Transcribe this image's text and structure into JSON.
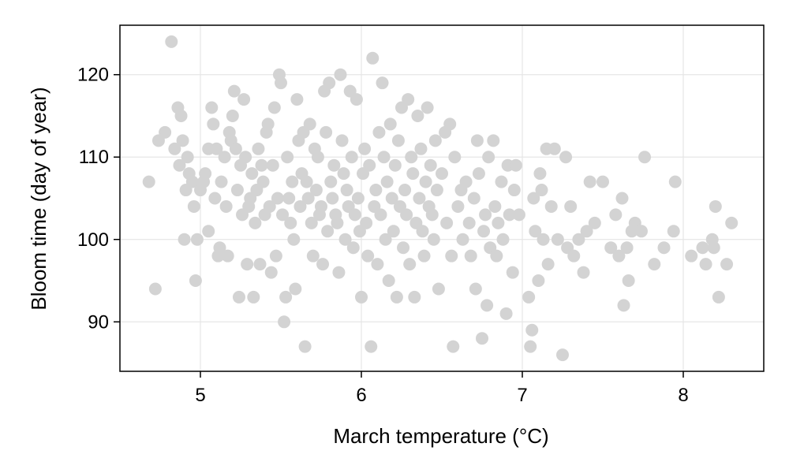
{
  "chart_data": {
    "type": "scatter",
    "title": "",
    "xlabel": "March temperature (°C)",
    "ylabel": "Bloom time (day of year)",
    "xlim": [
      4.5,
      8.5
    ],
    "ylim": [
      84,
      126
    ],
    "xticks": [
      5,
      6,
      7,
      8
    ],
    "yticks": [
      90,
      100,
      110,
      120
    ],
    "grid": true,
    "legend": "none",
    "marker_color": "#d3d3d3",
    "points": [
      [
        4.68,
        107
      ],
      [
        4.72,
        94
      ],
      [
        4.74,
        112
      ],
      [
        4.78,
        113
      ],
      [
        4.82,
        124
      ],
      [
        4.84,
        111
      ],
      [
        4.86,
        116
      ],
      [
        4.87,
        109
      ],
      [
        4.88,
        115
      ],
      [
        4.89,
        112
      ],
      [
        4.9,
        100
      ],
      [
        4.91,
        106
      ],
      [
        4.92,
        110
      ],
      [
        4.93,
        108
      ],
      [
        4.95,
        107
      ],
      [
        4.96,
        104
      ],
      [
        4.97,
        95
      ],
      [
        4.98,
        100
      ],
      [
        5.0,
        106
      ],
      [
        5.02,
        107
      ],
      [
        5.03,
        108
      ],
      [
        5.05,
        101
      ],
      [
        5.05,
        111
      ],
      [
        5.07,
        116
      ],
      [
        5.08,
        114
      ],
      [
        5.09,
        105
      ],
      [
        5.1,
        111
      ],
      [
        5.11,
        98
      ],
      [
        5.12,
        99
      ],
      [
        5.13,
        107
      ],
      [
        5.15,
        110
      ],
      [
        5.16,
        104
      ],
      [
        5.17,
        98
      ],
      [
        5.18,
        113
      ],
      [
        5.19,
        112
      ],
      [
        5.2,
        115
      ],
      [
        5.21,
        118
      ],
      [
        5.22,
        111
      ],
      [
        5.23,
        106
      ],
      [
        5.24,
        93
      ],
      [
        5.25,
        109
      ],
      [
        5.26,
        103
      ],
      [
        5.27,
        117
      ],
      [
        5.28,
        110
      ],
      [
        5.29,
        97
      ],
      [
        5.3,
        104
      ],
      [
        5.31,
        105
      ],
      [
        5.32,
        108
      ],
      [
        5.33,
        93
      ],
      [
        5.34,
        102
      ],
      [
        5.35,
        106
      ],
      [
        5.36,
        111
      ],
      [
        5.37,
        97
      ],
      [
        5.38,
        109
      ],
      [
        5.39,
        107
      ],
      [
        5.4,
        103
      ],
      [
        5.41,
        113
      ],
      [
        5.42,
        114
      ],
      [
        5.43,
        104
      ],
      [
        5.44,
        96
      ],
      [
        5.45,
        109
      ],
      [
        5.46,
        116
      ],
      [
        5.47,
        98
      ],
      [
        5.48,
        105
      ],
      [
        5.49,
        120
      ],
      [
        5.5,
        119
      ],
      [
        5.51,
        103
      ],
      [
        5.52,
        90
      ],
      [
        5.53,
        93
      ],
      [
        5.54,
        110
      ],
      [
        5.55,
        105
      ],
      [
        5.56,
        102
      ],
      [
        5.57,
        107
      ],
      [
        5.58,
        100
      ],
      [
        5.59,
        94
      ],
      [
        5.6,
        117
      ],
      [
        5.61,
        112
      ],
      [
        5.62,
        104
      ],
      [
        5.63,
        108
      ],
      [
        5.64,
        113
      ],
      [
        5.65,
        87
      ],
      [
        5.66,
        107
      ],
      [
        5.67,
        105
      ],
      [
        5.68,
        114
      ],
      [
        5.69,
        102
      ],
      [
        5.7,
        98
      ],
      [
        5.71,
        111
      ],
      [
        5.72,
        106
      ],
      [
        5.73,
        110
      ],
      [
        5.74,
        103
      ],
      [
        5.75,
        104
      ],
      [
        5.76,
        97
      ],
      [
        5.77,
        118
      ],
      [
        5.78,
        113
      ],
      [
        5.79,
        101
      ],
      [
        5.8,
        119
      ],
      [
        5.81,
        107
      ],
      [
        5.82,
        105
      ],
      [
        5.83,
        109
      ],
      [
        5.84,
        103
      ],
      [
        5.85,
        102
      ],
      [
        5.86,
        96
      ],
      [
        5.87,
        120
      ],
      [
        5.88,
        112
      ],
      [
        5.89,
        108
      ],
      [
        5.9,
        100
      ],
      [
        5.91,
        106
      ],
      [
        5.92,
        104
      ],
      [
        5.93,
        118
      ],
      [
        5.94,
        110
      ],
      [
        5.95,
        99
      ],
      [
        5.96,
        103
      ],
      [
        5.97,
        117
      ],
      [
        5.98,
        105
      ],
      [
        5.99,
        101
      ],
      [
        6.0,
        93
      ],
      [
        6.01,
        108
      ],
      [
        6.02,
        111
      ],
      [
        6.03,
        102
      ],
      [
        6.04,
        98
      ],
      [
        6.05,
        109
      ],
      [
        6.06,
        87
      ],
      [
        6.07,
        122
      ],
      [
        6.08,
        104
      ],
      [
        6.09,
        106
      ],
      [
        6.1,
        97
      ],
      [
        6.11,
        113
      ],
      [
        6.12,
        103
      ],
      [
        6.13,
        119
      ],
      [
        6.14,
        110
      ],
      [
        6.15,
        100
      ],
      [
        6.16,
        107
      ],
      [
        6.17,
        95
      ],
      [
        6.18,
        114
      ],
      [
        6.19,
        105
      ],
      [
        6.2,
        101
      ],
      [
        6.21,
        109
      ],
      [
        6.22,
        93
      ],
      [
        6.23,
        112
      ],
      [
        6.24,
        104
      ],
      [
        6.25,
        116
      ],
      [
        6.26,
        99
      ],
      [
        6.27,
        106
      ],
      [
        6.28,
        103
      ],
      [
        6.29,
        117
      ],
      [
        6.3,
        97
      ],
      [
        6.31,
        110
      ],
      [
        6.32,
        108
      ],
      [
        6.33,
        93
      ],
      [
        6.34,
        102
      ],
      [
        6.35,
        115
      ],
      [
        6.36,
        105
      ],
      [
        6.37,
        111
      ],
      [
        6.38,
        101
      ],
      [
        6.39,
        98
      ],
      [
        6.4,
        107
      ],
      [
        6.41,
        116
      ],
      [
        6.42,
        104
      ],
      [
        6.43,
        109
      ],
      [
        6.44,
        103
      ],
      [
        6.45,
        100
      ],
      [
        6.46,
        112
      ],
      [
        6.47,
        106
      ],
      [
        6.48,
        94
      ],
      [
        6.5,
        108
      ],
      [
        6.52,
        113
      ],
      [
        6.53,
        102
      ],
      [
        6.55,
        114
      ],
      [
        6.56,
        98
      ],
      [
        6.57,
        87
      ],
      [
        6.58,
        110
      ],
      [
        6.6,
        104
      ],
      [
        6.62,
        106
      ],
      [
        6.63,
        100
      ],
      [
        6.65,
        107
      ],
      [
        6.67,
        102
      ],
      [
        6.68,
        98
      ],
      [
        6.7,
        105
      ],
      [
        6.71,
        94
      ],
      [
        6.72,
        112
      ],
      [
        6.73,
        108
      ],
      [
        6.75,
        88
      ],
      [
        6.76,
        101
      ],
      [
        6.77,
        103
      ],
      [
        6.78,
        92
      ],
      [
        6.79,
        110
      ],
      [
        6.8,
        99
      ],
      [
        6.82,
        112
      ],
      [
        6.83,
        104
      ],
      [
        6.84,
        98
      ],
      [
        6.85,
        102
      ],
      [
        6.87,
        107
      ],
      [
        6.88,
        100
      ],
      [
        6.9,
        91
      ],
      [
        6.91,
        109
      ],
      [
        6.92,
        103
      ],
      [
        6.94,
        96
      ],
      [
        6.95,
        106
      ],
      [
        6.96,
        109
      ],
      [
        6.98,
        103
      ],
      [
        7.04,
        93
      ],
      [
        7.05,
        87
      ],
      [
        7.06,
        89
      ],
      [
        7.07,
        105
      ],
      [
        7.08,
        101
      ],
      [
        7.1,
        95
      ],
      [
        7.11,
        108
      ],
      [
        7.12,
        106
      ],
      [
        7.13,
        100
      ],
      [
        7.15,
        111
      ],
      [
        7.16,
        97
      ],
      [
        7.18,
        104
      ],
      [
        7.2,
        111
      ],
      [
        7.22,
        100
      ],
      [
        7.25,
        86
      ],
      [
        7.27,
        110
      ],
      [
        7.28,
        99
      ],
      [
        7.3,
        104
      ],
      [
        7.32,
        98
      ],
      [
        7.35,
        100
      ],
      [
        7.38,
        96
      ],
      [
        7.4,
        101
      ],
      [
        7.42,
        107
      ],
      [
        7.45,
        102
      ],
      [
        7.5,
        107
      ],
      [
        7.55,
        99
      ],
      [
        7.58,
        103
      ],
      [
        7.6,
        98
      ],
      [
        7.62,
        105
      ],
      [
        7.63,
        92
      ],
      [
        7.65,
        99
      ],
      [
        7.66,
        95
      ],
      [
        7.68,
        101
      ],
      [
        7.7,
        102
      ],
      [
        7.74,
        101
      ],
      [
        7.76,
        110
      ],
      [
        7.82,
        97
      ],
      [
        7.88,
        99
      ],
      [
        7.94,
        101
      ],
      [
        7.95,
        107
      ],
      [
        8.05,
        98
      ],
      [
        8.12,
        99
      ],
      [
        8.14,
        97
      ],
      [
        8.18,
        100
      ],
      [
        8.19,
        99
      ],
      [
        8.2,
        104
      ],
      [
        8.22,
        93
      ],
      [
        8.27,
        97
      ],
      [
        8.3,
        102
      ]
    ]
  }
}
